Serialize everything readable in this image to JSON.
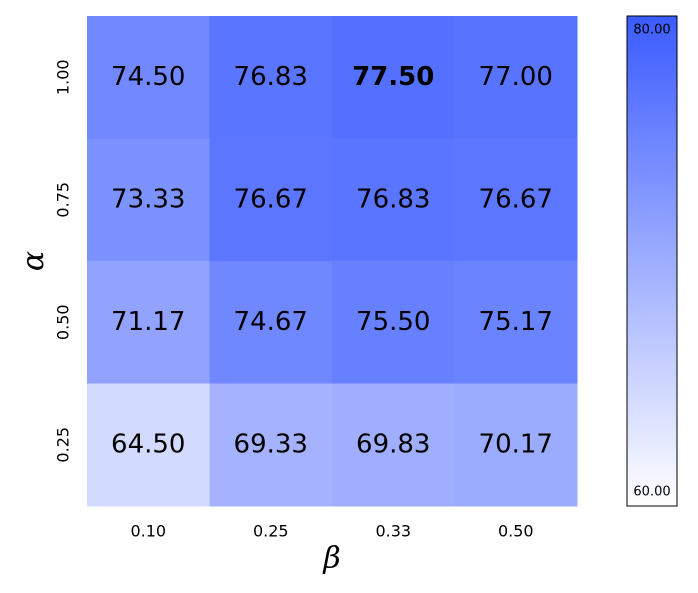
{
  "chart_data": {
    "type": "heatmap",
    "x_label": "β",
    "y_label": "α",
    "x_categories": [
      "0.10",
      "0.25",
      "0.33",
      "0.50"
    ],
    "y_categories": [
      "1.00",
      "0.75",
      "0.50",
      "0.25"
    ],
    "values": [
      [
        74.5,
        76.83,
        77.5,
        77
      ],
      [
        73.33,
        76.67,
        76.83,
        76.67
      ],
      [
        71.17,
        74.67,
        75.5,
        75.17
      ],
      [
        64.5,
        69.33,
        69.83,
        70.17
      ]
    ],
    "value_labels": [
      [
        "74.50",
        "76.83",
        "77.50",
        "77.00"
      ],
      [
        "73.33",
        "76.67",
        "76.83",
        "76.67"
      ],
      [
        "71.17",
        "74.67",
        "75.50",
        "75.17"
      ],
      [
        "64.50",
        "69.33",
        "69.83",
        "70.17"
      ]
    ],
    "bold_max": true,
    "clim": [
      60,
      80
    ],
    "colorbar_ticks": [
      {
        "value": 60,
        "label": "60.00"
      },
      {
        "value": 80,
        "label": "80.00"
      }
    ],
    "cmap": [
      "#ffffff",
      "#3b5bff"
    ]
  }
}
